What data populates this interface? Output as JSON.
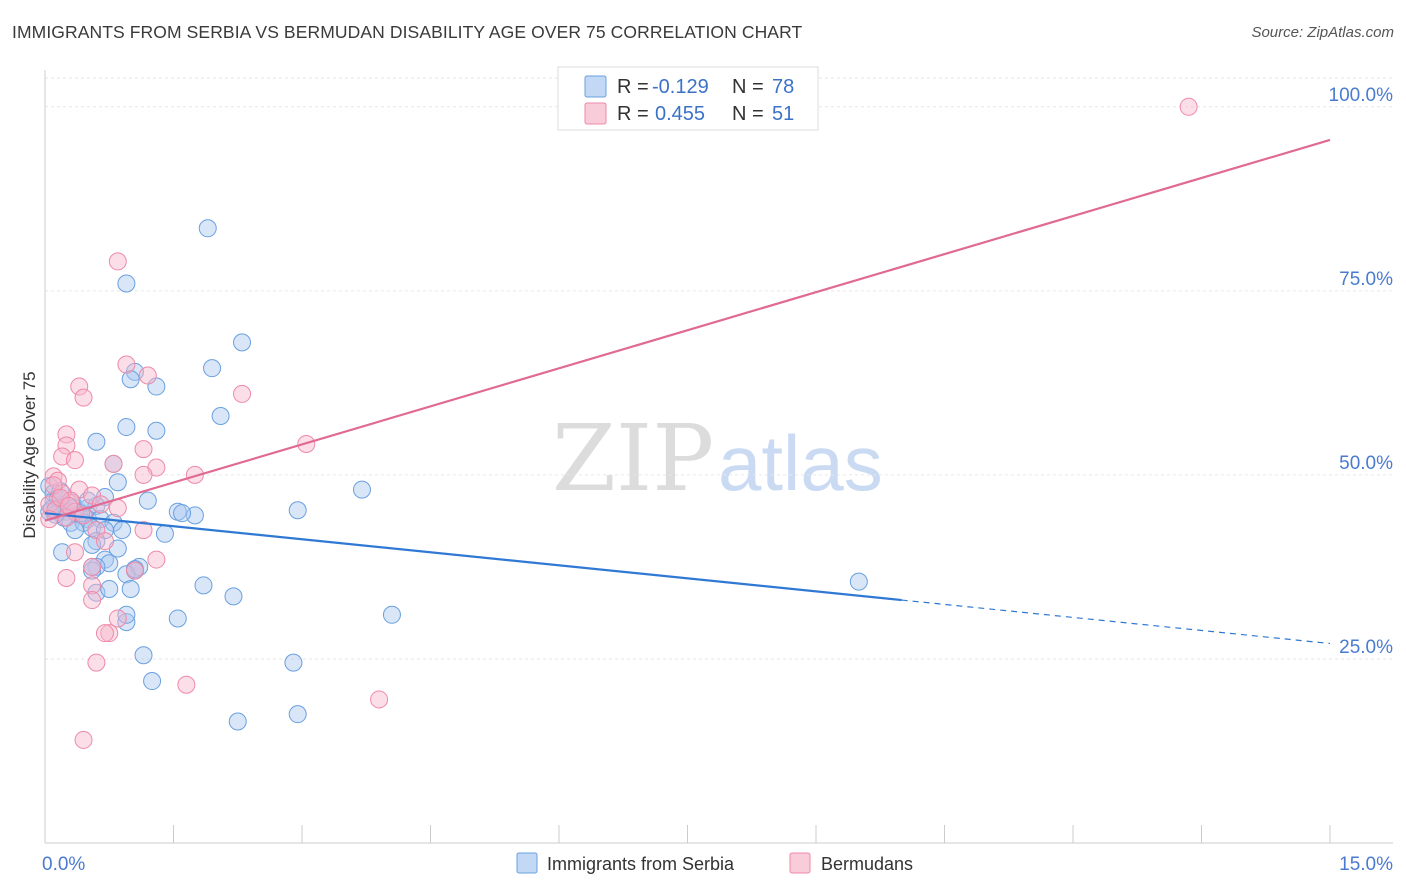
{
  "header": {
    "title": "IMMIGRANTS FROM SERBIA VS BERMUDAN DISABILITY AGE OVER 75 CORRELATION CHART",
    "source": "Source: ZipAtlas.com"
  },
  "watermark": {
    "part1": "ZIP",
    "part2": "atlas"
  },
  "colors": {
    "blue_fill": "#a8c8f0",
    "blue_stroke": "#6aa0e0",
    "blue_line": "#2f78d4",
    "pink_fill": "#f7b6cb",
    "pink_stroke": "#ee8aa8",
    "pink_line": "#e06a94",
    "tick_text": "#4a7bd0",
    "grid": "#e6e6e6"
  },
  "legend": {
    "r_label": "R =",
    "n_label": "N =",
    "rows": [
      {
        "r": "-0.129",
        "n": "78"
      },
      {
        "r": "0.455",
        "n": "51"
      }
    ]
  },
  "chart_data": {
    "type": "scatter",
    "title": "IMMIGRANTS FROM SERBIA VS BERMUDAN DISABILITY AGE OVER 75 CORRELATION CHART",
    "xlabel": "",
    "ylabel": "Disability Age Over 75",
    "xlim": [
      0,
      15
    ],
    "ylim": [
      0,
      105
    ],
    "x_tick_labels": [
      "0.0%",
      "15.0%"
    ],
    "y_ticks": [
      {
        "value": 25,
        "label": "25.0%"
      },
      {
        "value": 50,
        "label": "50.0%"
      },
      {
        "value": 75,
        "label": "75.0%"
      },
      {
        "value": 100,
        "label": "100.0%"
      }
    ],
    "series": [
      {
        "name": "Immigrants from Serbia",
        "color_key": "blue",
        "trend": {
          "x0": 0.0,
          "y0": 44.8,
          "x1": 10.0,
          "y1": 33.0,
          "dash_to_x": 15.0,
          "dash_to_y": 27.1
        },
        "points": [
          [
            1.9,
            83.5
          ],
          [
            0.95,
            76.0
          ],
          [
            2.3,
            68.0
          ],
          [
            1.95,
            64.5
          ],
          [
            1.05,
            64.0
          ],
          [
            1.0,
            63.0
          ],
          [
            1.3,
            62.0
          ],
          [
            2.05,
            58.0
          ],
          [
            0.95,
            56.5
          ],
          [
            1.3,
            56.0
          ],
          [
            0.6,
            54.5
          ],
          [
            0.8,
            51.5
          ],
          [
            0.85,
            49.0
          ],
          [
            3.7,
            48.0
          ],
          [
            0.7,
            47.0
          ],
          [
            1.2,
            46.5
          ],
          [
            0.1,
            46.5
          ],
          [
            0.2,
            46.0
          ],
          [
            0.35,
            45.5
          ],
          [
            0.5,
            45.5
          ],
          [
            0.6,
            45.8
          ],
          [
            0.05,
            45.0
          ],
          [
            0.15,
            45.0
          ],
          [
            0.25,
            45.0
          ],
          [
            0.4,
            44.5
          ],
          [
            0.5,
            44.0
          ],
          [
            0.65,
            44.0
          ],
          [
            1.55,
            45.0
          ],
          [
            1.75,
            44.5
          ],
          [
            2.95,
            45.2
          ],
          [
            1.6,
            44.8
          ],
          [
            0.3,
            43.5
          ],
          [
            0.45,
            43.5
          ],
          [
            0.55,
            42.8
          ],
          [
            0.8,
            43.5
          ],
          [
            0.35,
            42.5
          ],
          [
            0.7,
            42.5
          ],
          [
            0.9,
            42.5
          ],
          [
            1.4,
            42.0
          ],
          [
            0.6,
            41.0
          ],
          [
            0.55,
            40.5
          ],
          [
            0.85,
            40.0
          ],
          [
            0.2,
            39.5
          ],
          [
            0.7,
            38.5
          ],
          [
            0.75,
            38.0
          ],
          [
            0.6,
            37.5
          ],
          [
            0.55,
            37.0
          ],
          [
            0.55,
            37.5
          ],
          [
            1.05,
            37.0
          ],
          [
            1.1,
            37.5
          ],
          [
            0.95,
            36.5
          ],
          [
            1.05,
            37.2
          ],
          [
            9.5,
            35.5
          ],
          [
            1.85,
            35.0
          ],
          [
            0.6,
            34.0
          ],
          [
            0.75,
            34.5
          ],
          [
            1.0,
            34.5
          ],
          [
            2.2,
            33.5
          ],
          [
            4.05,
            31.0
          ],
          [
            1.55,
            30.5
          ],
          [
            0.95,
            30.0
          ],
          [
            0.95,
            31.0
          ],
          [
            1.15,
            25.5
          ],
          [
            2.9,
            24.5
          ],
          [
            1.25,
            22.0
          ],
          [
            2.95,
            17.5
          ],
          [
            2.25,
            16.5
          ],
          [
            0.05,
            48.5
          ],
          [
            0.1,
            47.5
          ],
          [
            0.15,
            46.8
          ],
          [
            0.22,
            44.2
          ],
          [
            0.28,
            45.6
          ],
          [
            0.32,
            46.2
          ],
          [
            0.42,
            44.8
          ],
          [
            0.12,
            44.6
          ],
          [
            0.08,
            45.4
          ],
          [
            0.18,
            47.8
          ],
          [
            0.5,
            46.5
          ]
        ]
      },
      {
        "name": "Bermudans",
        "color_key": "pink",
        "trend": {
          "x0": 0.0,
          "y0": 43.8,
          "x1": 15.0,
          "y1": 95.5
        },
        "points": [
          [
            13.35,
            100.0
          ],
          [
            0.85,
            79.0
          ],
          [
            0.95,
            65.0
          ],
          [
            1.2,
            63.5
          ],
          [
            0.4,
            62.0
          ],
          [
            0.45,
            60.5
          ],
          [
            2.3,
            61.0
          ],
          [
            0.25,
            55.5
          ],
          [
            0.25,
            54.0
          ],
          [
            1.15,
            53.5
          ],
          [
            3.05,
            54.2
          ],
          [
            0.2,
            52.5
          ],
          [
            0.35,
            52.0
          ],
          [
            0.8,
            51.5
          ],
          [
            1.3,
            51.0
          ],
          [
            1.15,
            50.0
          ],
          [
            1.75,
            50.0
          ],
          [
            0.1,
            49.8
          ],
          [
            0.15,
            49.2
          ],
          [
            0.4,
            48.0
          ],
          [
            0.55,
            47.2
          ],
          [
            0.2,
            47.5
          ],
          [
            0.3,
            46.5
          ],
          [
            0.65,
            46.0
          ],
          [
            0.85,
            45.5
          ],
          [
            0.05,
            46.0
          ],
          [
            0.12,
            45.2
          ],
          [
            0.35,
            45.0
          ],
          [
            0.45,
            44.5
          ],
          [
            0.05,
            44.0
          ],
          [
            0.25,
            44.2
          ],
          [
            0.6,
            42.5
          ],
          [
            1.15,
            42.5
          ],
          [
            0.7,
            41.0
          ],
          [
            0.35,
            39.5
          ],
          [
            1.3,
            38.5
          ],
          [
            0.55,
            37.5
          ],
          [
            1.05,
            37.0
          ],
          [
            0.25,
            36.0
          ],
          [
            0.55,
            35.0
          ],
          [
            0.55,
            33.0
          ],
          [
            0.85,
            30.5
          ],
          [
            0.75,
            28.5
          ],
          [
            0.7,
            28.5
          ],
          [
            0.6,
            24.5
          ],
          [
            1.65,
            21.5
          ],
          [
            3.9,
            19.5
          ],
          [
            0.45,
            14.0
          ],
          [
            0.1,
            48.6
          ],
          [
            0.18,
            46.9
          ],
          [
            0.28,
            45.8
          ]
        ]
      }
    ]
  }
}
